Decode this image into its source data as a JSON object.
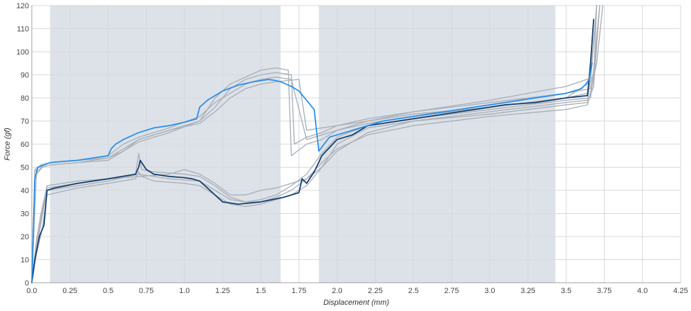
{
  "chart_data": {
    "type": "line",
    "xlabel": "Displacement (mm)",
    "ylabel": "Force (gf)",
    "xlim": [
      0,
      4.25
    ],
    "ylim": [
      0,
      120
    ],
    "x_ticks": [
      0.0,
      0.25,
      0.5,
      0.75,
      1.0,
      1.25,
      1.5,
      1.75,
      2.0,
      2.25,
      2.5,
      2.75,
      3.0,
      3.25,
      3.5,
      3.75,
      4.0,
      4.25
    ],
    "x_tick_labels": [
      "0.0",
      "0.25",
      "0.5",
      "0.75",
      "1.0",
      "1.25",
      "1.5",
      "1.75",
      "2.0",
      "2.25",
      "2.5",
      "2.75",
      "3.0",
      "3.25",
      "3.5",
      "3.75",
      "4.0",
      "4.25"
    ],
    "y_ticks": [
      0,
      10,
      20,
      30,
      40,
      50,
      60,
      70,
      80,
      90,
      100,
      110,
      120
    ],
    "y_tick_labels": [
      "0",
      "10",
      "20",
      "30",
      "40",
      "50",
      "60",
      "70",
      "80",
      "90",
      "100",
      "110",
      "120"
    ],
    "grid": true,
    "legend": "none",
    "shaded_regions": [
      {
        "x0": 0.12,
        "x1": 1.63,
        "color": "#dde2e8"
      },
      {
        "x0": 1.88,
        "x1": 3.43,
        "color": "#dde2e8"
      }
    ],
    "colors": {
      "highlight_upper": "#2a8ee8",
      "highlight_lower": "#163f6e",
      "other_trials": "#aab1ba"
    },
    "series": [
      {
        "role": "highlight_upper",
        "x": [
          0,
          0.02,
          0.04,
          0.08,
          0.12,
          0.2,
          0.3,
          0.4,
          0.5,
          0.52,
          0.55,
          0.6,
          0.7,
          0.8,
          0.9,
          1.0,
          1.08,
          1.1,
          1.15,
          1.25,
          1.35,
          1.45,
          1.55,
          1.6,
          1.63,
          1.7,
          1.75,
          1.85,
          1.88,
          1.95,
          2.05,
          2.15,
          2.3,
          2.5,
          2.7,
          2.9,
          3.1,
          3.3,
          3.5,
          3.6,
          3.63,
          3.65,
          3.67
        ],
        "y": [
          0,
          45,
          50,
          51,
          52,
          52.5,
          53,
          54,
          55,
          58,
          60,
          62,
          65,
          67,
          68,
          69.5,
          71,
          76,
          79,
          83,
          85.5,
          87,
          88,
          87.5,
          87,
          85,
          83,
          75,
          57,
          63,
          65,
          67,
          70,
          72,
          74,
          76,
          78,
          80,
          82,
          84,
          86,
          88,
          95
        ]
      },
      {
        "role": "highlight_lower",
        "x": [
          0,
          0.02,
          0.05,
          0.08,
          0.1,
          0.15,
          0.3,
          0.5,
          0.68,
          0.7,
          0.71,
          0.75,
          0.8,
          0.9,
          1.0,
          1.05,
          1.1,
          1.15,
          1.2,
          1.25,
          1.3,
          1.35,
          1.5,
          1.65,
          1.75,
          1.77,
          1.8,
          1.85,
          1.9,
          2.0,
          2.1,
          2.2,
          2.3,
          2.5,
          2.7,
          2.9,
          3.1,
          3.3,
          3.5,
          3.64,
          3.66,
          3.68
        ],
        "y": [
          0,
          10,
          20,
          25,
          40,
          41,
          43,
          45,
          47,
          50,
          53,
          49,
          47,
          46,
          45.5,
          45,
          44,
          41,
          38,
          35,
          34.5,
          34,
          35,
          37,
          39,
          45,
          43,
          48,
          55,
          62,
          64,
          68,
          69,
          71,
          73,
          75,
          77,
          78,
          80,
          81,
          95,
          114
        ]
      },
      {
        "role": "other_trials",
        "x": [
          0,
          0.02,
          0.06,
          0.12,
          0.3,
          0.5,
          0.6,
          0.7,
          0.9,
          1.1,
          1.2,
          1.3,
          1.4,
          1.5,
          1.6,
          1.7,
          1.8,
          1.9,
          2.0,
          2.2,
          2.5,
          3.0,
          3.5,
          3.64,
          3.66,
          3.7
        ],
        "y": [
          0,
          48,
          51,
          52,
          53,
          55,
          60,
          63,
          67,
          72,
          78,
          82,
          86,
          88,
          89,
          88,
          62,
          64,
          66,
          69,
          72,
          76,
          80,
          82,
          90,
          120
        ]
      },
      {
        "role": "other_trials",
        "x": [
          0,
          0.02,
          0.06,
          0.12,
          0.3,
          0.5,
          0.6,
          0.7,
          0.9,
          1.1,
          1.2,
          1.3,
          1.4,
          1.5,
          1.6,
          1.7,
          1.72,
          1.8,
          1.9,
          2.0,
          2.2,
          2.5,
          3.0,
          3.5,
          3.66,
          3.68,
          3.72
        ],
        "y": [
          0,
          46,
          50,
          51,
          52,
          54,
          58,
          62,
          66,
          70,
          76,
          84,
          88,
          90,
          91,
          90,
          60,
          63,
          65,
          68,
          71,
          74,
          78,
          82,
          84,
          92,
          120
        ]
      },
      {
        "role": "other_trials",
        "x": [
          0,
          0.03,
          0.07,
          0.12,
          0.3,
          0.5,
          0.6,
          0.7,
          0.9,
          1.1,
          1.2,
          1.3,
          1.4,
          1.5,
          1.6,
          1.68,
          1.7,
          1.8,
          1.9,
          2.0,
          2.2,
          2.5,
          3.0,
          3.5,
          3.68,
          3.7,
          3.74
        ],
        "y": [
          0,
          47,
          50,
          51,
          52,
          53,
          57,
          61,
          65,
          70,
          80,
          86,
          89,
          92,
          93,
          92,
          55,
          60,
          62,
          66,
          70,
          74,
          79,
          85,
          89,
          95,
          120
        ]
      },
      {
        "role": "other_trials",
        "x": [
          0,
          0.02,
          0.06,
          0.12,
          0.3,
          0.5,
          0.6,
          0.7,
          0.9,
          1.1,
          1.2,
          1.3,
          1.4,
          1.5,
          1.6,
          1.75,
          1.8,
          1.9,
          2.0,
          2.2,
          2.5,
          3.0,
          3.5,
          3.66,
          3.7
        ],
        "y": [
          0,
          49,
          51,
          52,
          53,
          54,
          57,
          62,
          66,
          69,
          74,
          80,
          84,
          86,
          87,
          88,
          66,
          67,
          68,
          70,
          73,
          76,
          80,
          87,
          120
        ]
      },
      {
        "role": "other_trials",
        "x": [
          0,
          0.03,
          0.07,
          0.1,
          0.3,
          0.5,
          0.68,
          0.7,
          0.72,
          0.8,
          1.0,
          1.1,
          1.2,
          1.3,
          1.4,
          1.5,
          1.6,
          1.7,
          1.8,
          1.9,
          2.0,
          2.2,
          2.5,
          3.0,
          3.5,
          3.64,
          3.66,
          3.7
        ],
        "y": [
          0,
          12,
          24,
          38,
          41,
          43,
          45,
          48,
          46,
          44,
          43,
          42,
          38,
          34,
          33,
          34,
          36,
          38,
          42,
          50,
          60,
          67,
          70,
          74,
          78,
          79,
          88,
          120
        ]
      },
      {
        "role": "other_trials",
        "x": [
          0,
          0.03,
          0.06,
          0.1,
          0.3,
          0.5,
          0.68,
          0.7,
          0.72,
          0.8,
          1.0,
          1.1,
          1.2,
          1.3,
          1.4,
          1.5,
          1.6,
          1.7,
          1.8,
          1.9,
          2.0,
          2.2,
          2.5,
          3.0,
          3.5,
          3.66,
          3.68,
          3.72
        ],
        "y": [
          0,
          18,
          30,
          42,
          44,
          45,
          47,
          56,
          49,
          48,
          47,
          46,
          42,
          37,
          35,
          36,
          38,
          42,
          47,
          56,
          63,
          68,
          71,
          75,
          79,
          80,
          90,
          120
        ]
      },
      {
        "role": "other_trials",
        "x": [
          0,
          0.02,
          0.05,
          0.1,
          0.3,
          0.5,
          0.7,
          0.9,
          1.1,
          1.2,
          1.3,
          1.4,
          1.5,
          1.6,
          1.7,
          1.8,
          1.9,
          2.0,
          2.2,
          2.5,
          3.0,
          3.5,
          3.64,
          3.68,
          3.7
        ],
        "y": [
          0,
          10,
          22,
          40,
          42,
          44,
          47,
          45,
          44,
          40,
          36,
          35,
          35,
          37,
          40,
          45,
          52,
          58,
          64,
          68,
          72,
          75,
          77,
          88,
          120
        ]
      },
      {
        "role": "other_trials",
        "x": [
          0,
          0.03,
          0.06,
          0.1,
          0.3,
          0.5,
          0.7,
          0.9,
          1.0,
          1.1,
          1.2,
          1.3,
          1.4,
          1.5,
          1.6,
          1.7,
          1.8,
          1.9,
          2.0,
          2.2,
          2.5,
          3.0,
          3.5,
          3.64,
          3.68,
          3.72
        ],
        "y": [
          0,
          15,
          28,
          41,
          43,
          45,
          46,
          47,
          49,
          47,
          43,
          38,
          38,
          40,
          41,
          43,
          45,
          50,
          57,
          65,
          70,
          73,
          77,
          78,
          85,
          120
        ]
      }
    ]
  }
}
